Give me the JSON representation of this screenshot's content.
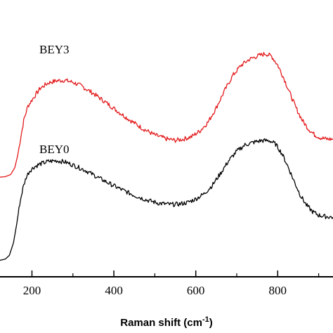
{
  "chart_data": {
    "type": "line",
    "title": "",
    "xlabel": "Raman shift (cm",
    "xlabel_sup": "-1",
    "xlabel_close": ")",
    "ylabel": "",
    "xlim": [
      122,
      935
    ],
    "ylim": [
      0,
      1
    ],
    "xticks": [
      200,
      400,
      600,
      800
    ],
    "grid": false,
    "legend": "none",
    "series": [
      {
        "name": "BEY3",
        "color": "#e31a1c",
        "points": [
          [
            122,
            0.368
          ],
          [
            135,
            0.37
          ],
          [
            148,
            0.378
          ],
          [
            158,
            0.405
          ],
          [
            165,
            0.452
          ],
          [
            172,
            0.518
          ],
          [
            180,
            0.592
          ],
          [
            190,
            0.648
          ],
          [
            200,
            0.672
          ],
          [
            220,
            0.718
          ],
          [
            240,
            0.74
          ],
          [
            260,
            0.748
          ],
          [
            280,
            0.75
          ],
          [
            300,
            0.742
          ],
          [
            320,
            0.728
          ],
          [
            350,
            0.698
          ],
          [
            380,
            0.663
          ],
          [
            410,
            0.627
          ],
          [
            440,
            0.592
          ],
          [
            470,
            0.56
          ],
          [
            500,
            0.534
          ],
          [
            530,
            0.518
          ],
          [
            550,
            0.513
          ],
          [
            570,
            0.518
          ],
          [
            590,
            0.528
          ],
          [
            610,
            0.55
          ],
          [
            630,
            0.585
          ],
          [
            650,
            0.642
          ],
          [
            670,
            0.708
          ],
          [
            690,
            0.768
          ],
          [
            710,
            0.808
          ],
          [
            730,
            0.832
          ],
          [
            750,
            0.845
          ],
          [
            770,
            0.855
          ],
          [
            785,
            0.845
          ],
          [
            800,
            0.81
          ],
          [
            815,
            0.758
          ],
          [
            830,
            0.698
          ],
          [
            845,
            0.64
          ],
          [
            860,
            0.592
          ],
          [
            875,
            0.558
          ],
          [
            890,
            0.535
          ],
          [
            905,
            0.523
          ],
          [
            920,
            0.518
          ],
          [
            935,
            0.518
          ]
        ]
      },
      {
        "name": "BEY0",
        "color": "#000000",
        "points": [
          [
            122,
            0.04
          ],
          [
            135,
            0.045
          ],
          [
            145,
            0.06
          ],
          [
            155,
            0.11
          ],
          [
            163,
            0.185
          ],
          [
            170,
            0.262
          ],
          [
            178,
            0.325
          ],
          [
            186,
            0.368
          ],
          [
            194,
            0.392
          ],
          [
            205,
            0.408
          ],
          [
            220,
            0.42
          ],
          [
            240,
            0.43
          ],
          [
            260,
            0.433
          ],
          [
            280,
            0.428
          ],
          [
            300,
            0.416
          ],
          [
            330,
            0.395
          ],
          [
            360,
            0.368
          ],
          [
            390,
            0.342
          ],
          [
            420,
            0.318
          ],
          [
            450,
            0.296
          ],
          [
            480,
            0.278
          ],
          [
            510,
            0.265
          ],
          [
            540,
            0.26
          ],
          [
            560,
            0.262
          ],
          [
            580,
            0.268
          ],
          [
            600,
            0.282
          ],
          [
            620,
            0.302
          ],
          [
            640,
            0.335
          ],
          [
            660,
            0.382
          ],
          [
            680,
            0.432
          ],
          [
            700,
            0.47
          ],
          [
            720,
            0.495
          ],
          [
            740,
            0.505
          ],
          [
            760,
            0.512
          ],
          [
            780,
            0.512
          ],
          [
            795,
            0.498
          ],
          [
            810,
            0.462
          ],
          [
            825,
            0.41
          ],
          [
            840,
            0.352
          ],
          [
            855,
            0.298
          ],
          [
            870,
            0.258
          ],
          [
            885,
            0.232
          ],
          [
            900,
            0.218
          ],
          [
            915,
            0.213
          ],
          [
            935,
            0.21
          ]
        ]
      }
    ]
  }
}
